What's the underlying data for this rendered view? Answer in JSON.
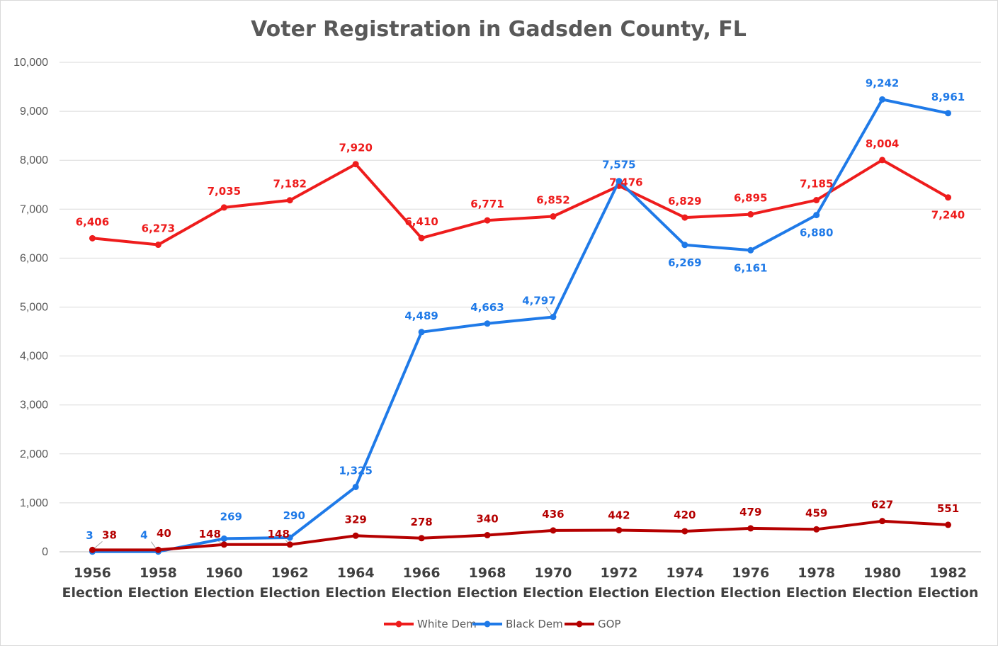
{
  "chart_data": {
    "type": "line",
    "title": "Voter Registration in Gadsden County, FL",
    "xlabel": "",
    "ylabel": "",
    "ylim": [
      0,
      10000
    ],
    "yticks": [
      0,
      1000,
      2000,
      3000,
      4000,
      5000,
      6000,
      7000,
      8000,
      9000,
      10000
    ],
    "ytick_labels": [
      "0",
      "1,000",
      "2,000",
      "3,000",
      "4,000",
      "5,000",
      "6,000",
      "7,000",
      "8,000",
      "9,000",
      "10,000"
    ],
    "grid": true,
    "legend_position": "bottom",
    "categories": [
      [
        "1956",
        "Election"
      ],
      [
        "1958",
        "Election"
      ],
      [
        "1960",
        "Election"
      ],
      [
        "1962",
        "Election"
      ],
      [
        "1964",
        "Election"
      ],
      [
        "1966",
        "Election"
      ],
      [
        "1968",
        "Election"
      ],
      [
        "1970",
        "Election"
      ],
      [
        "1972",
        "Election"
      ],
      [
        "1974",
        "Election"
      ],
      [
        "1976",
        "Election"
      ],
      [
        "1978",
        "Election"
      ],
      [
        "1980",
        "Election"
      ],
      [
        "1982",
        "Election"
      ]
    ],
    "series": [
      {
        "name": "White Dem",
        "color": "#ee1c1c",
        "values": [
          6406,
          6273,
          7035,
          7182,
          7920,
          6410,
          6771,
          6852,
          7476,
          6829,
          6895,
          7185,
          8004,
          7240
        ],
        "labels": [
          "6,406",
          "6,273",
          "7,035",
          "7,182",
          "7,920",
          "6,410",
          "6,771",
          "6,852",
          "7,476",
          "6,829",
          "6,895",
          "7,185",
          "8,004",
          "7,240"
        ],
        "label_placement": [
          "above",
          "above",
          "above",
          "above",
          "above",
          "above",
          "above",
          "above",
          "below",
          "above",
          "above",
          "above",
          "above",
          "below"
        ]
      },
      {
        "name": "Black Dem",
        "color": "#1f7ae8",
        "values": [
          3,
          4,
          269,
          290,
          1325,
          4489,
          4663,
          4797,
          7575,
          6269,
          6161,
          6880,
          9242,
          8961
        ],
        "labels": [
          "3",
          "4",
          "269",
          "290",
          "1,325",
          "4,489",
          "4,663",
          "4,797",
          "7,575",
          "6,269",
          "6,161",
          "6,880",
          "9,242",
          "8,961"
        ],
        "label_placement": [
          "above",
          "above",
          "above",
          "above",
          "above",
          "above",
          "above",
          "above",
          "above",
          "below",
          "below",
          "below",
          "above",
          "above"
        ]
      },
      {
        "name": "GOP",
        "color": "#b50000",
        "values": [
          38,
          40,
          148,
          148,
          329,
          278,
          340,
          436,
          442,
          420,
          479,
          459,
          627,
          551
        ],
        "labels": [
          "38",
          "40",
          "148",
          "148",
          "329",
          "278",
          "340",
          "436",
          "442",
          "420",
          "479",
          "459",
          "627",
          "551"
        ],
        "label_placement": [
          "above",
          "above",
          "above",
          "above",
          "above",
          "above",
          "above",
          "above",
          "above",
          "above",
          "above",
          "above",
          "above",
          "above"
        ]
      }
    ],
    "label_colors": {
      "White Dem": "#ee1c1c",
      "Black Dem": "#1f7ae8",
      "GOP": "#b50000"
    }
  }
}
